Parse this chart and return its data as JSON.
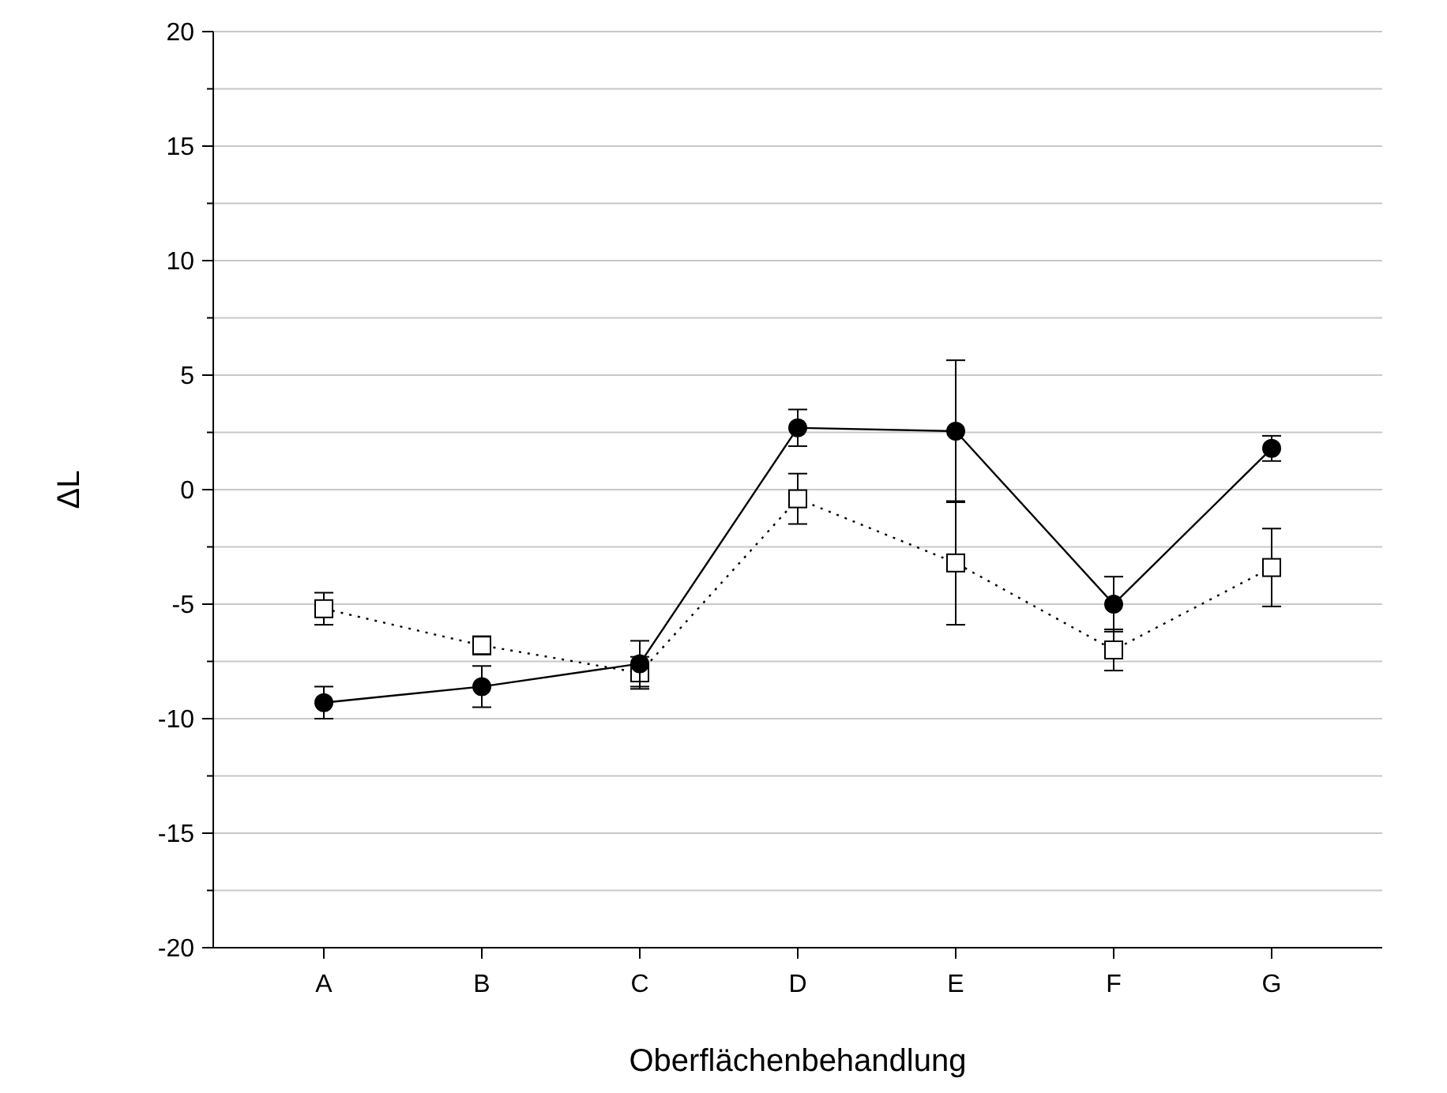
{
  "chart_data": {
    "type": "line",
    "xlabel": "Oberflächenbehandlung",
    "ylabel": "ΔL",
    "categories": [
      "A",
      "B",
      "C",
      "D",
      "E",
      "F",
      "G"
    ],
    "ylim": [
      -20,
      20
    ],
    "yticks": [
      -20,
      {
        "value": -17.5,
        "label": null
      },
      -15,
      {
        "value": -12.5,
        "label": null
      },
      -10,
      {
        "value": -7.5,
        "label": null
      },
      -5,
      {
        "value": -2.5,
        "label": null
      },
      0,
      {
        "value": 2.5,
        "label": null
      },
      5,
      {
        "value": 7.5,
        "label": null
      },
      10,
      {
        "value": 12.5,
        "label": null
      },
      15,
      {
        "value": 17.5,
        "label": null
      },
      20
    ],
    "grid": "y",
    "series": [
      {
        "color": "#000000",
        "marker": "circle",
        "line_style": "solid",
        "values": [
          -9.3,
          -8.6,
          -7.6,
          2.7,
          2.55,
          -5.0,
          1.8
        ],
        "errors": [
          0.7,
          0.9,
          1.0,
          0.8,
          3.1,
          1.2,
          0.55
        ]
      },
      {
        "color": "#000000",
        "marker": "square",
        "line_style": "dotted",
        "values": [
          -5.2,
          -6.8,
          -8.0,
          -0.4,
          -3.2,
          -7.0,
          -3.4
        ],
        "errors": [
          0.7,
          0.4,
          0.7,
          1.1,
          2.7,
          0.9,
          1.7
        ]
      }
    ]
  }
}
